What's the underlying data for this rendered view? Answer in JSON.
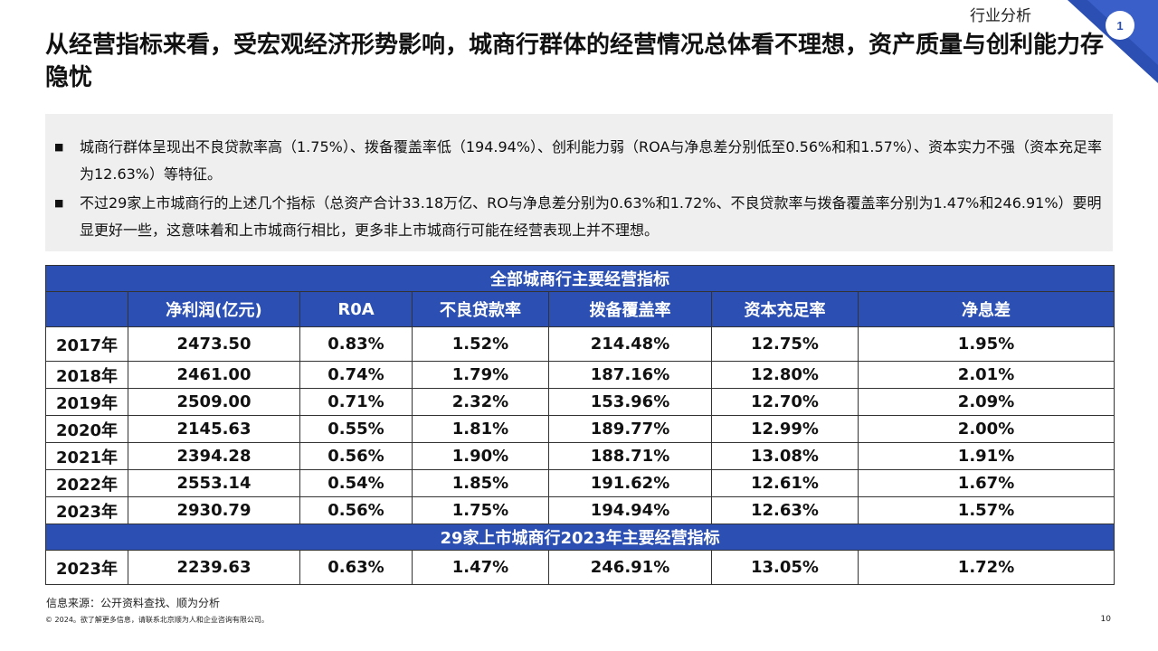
{
  "header": {
    "section_label": "行业分析",
    "badge_number": "1",
    "title": "从经营指标来看，受宏观经济形势影响，城商行群体的经营情况总体看不理想，资产质量与创利能力存隐忧"
  },
  "summary": {
    "bullets": [
      "城商行群体呈现出不良贷款率高（1.75%）、拨备覆盖率低（194.94%）、创利能力弱（ROA与净息差分别低至0.56%和和1.57%）、资本实力不强（资本充足率为12.63%）等特征。",
      "不过29家上市城商行的上述几个指标（总资产合计33.18万亿、RO与净息差分别为0.63%和1.72%、不良贷款率与拨备覆盖率分别为1.47%和246.91%）要明显更好一些，这意味着和上市城商行相比，更多非上市城商行可能在经营表现上并不理想。"
    ]
  },
  "table": {
    "banner_all": "全部城商行主要经营指标",
    "columns": [
      "",
      "净利润(亿元)",
      "R0A",
      "不良贷款率",
      "拨备覆盖率",
      "资本充足率",
      "净息差"
    ],
    "rows": [
      [
        "2017年",
        "2473.50",
        "0.83%",
        "1.52%",
        "214.48%",
        "12.75%",
        "1.95%"
      ],
      [
        "2018年",
        "2461.00",
        "0.74%",
        "1.79%",
        "187.16%",
        "12.80%",
        "2.01%"
      ],
      [
        "2019年",
        "2509.00",
        "0.71%",
        "2.32%",
        "153.96%",
        "12.70%",
        "2.09%"
      ],
      [
        "2020年",
        "2145.63",
        "0.55%",
        "1.81%",
        "189.77%",
        "12.99%",
        "2.00%"
      ],
      [
        "2021年",
        "2394.28",
        "0.56%",
        "1.90%",
        "188.71%",
        "13.08%",
        "1.91%"
      ],
      [
        "2022年",
        "2553.14",
        "0.54%",
        "1.85%",
        "191.62%",
        "12.61%",
        "1.67%"
      ],
      [
        "2023年",
        "2930.79",
        "0.56%",
        "1.75%",
        "194.94%",
        "12.63%",
        "1.57%"
      ]
    ],
    "banner_listed": "29家上市城商行2023年主要经营指标",
    "listed_row": [
      "2023年",
      "2239.63",
      "0.63%",
      "1.47%",
      "246.91%",
      "13.05%",
      "1.72%"
    ]
  },
  "footer": {
    "source": "信息来源：公开资料查找、顺为分析",
    "copyright": "© 2024。欲了解更多信息，请联系北京顺为人和企业咨询有限公司。",
    "page_number": "10"
  },
  "colors": {
    "accent_blue": "#2b4fb2",
    "summary_bg": "#efefef"
  }
}
